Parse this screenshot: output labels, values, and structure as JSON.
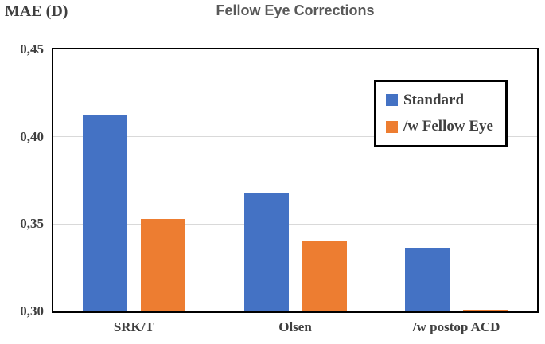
{
  "chart_data": {
    "type": "bar",
    "title": "Fellow Eye Corrections",
    "ylabel": "MAE (D)",
    "xlabel": "",
    "categories": [
      "SRK/T",
      "Olsen",
      "/w postop ACD"
    ],
    "series": [
      {
        "name": "Standard",
        "color": "#4472C4",
        "values": [
          0.412,
          0.368,
          0.336
        ]
      },
      {
        "name": "/w Fellow Eye",
        "color": "#ED7D31",
        "values": [
          0.353,
          0.34,
          0.301
        ]
      }
    ],
    "ylim": [
      0.3,
      0.45
    ],
    "yticks": [
      {
        "value": 0.45,
        "label": "0,45"
      },
      {
        "value": 0.4,
        "label": "0,40"
      },
      {
        "value": 0.35,
        "label": "0,35"
      },
      {
        "value": 0.3,
        "label": "0,30"
      }
    ],
    "grid": "horizontal",
    "legend_position": "top-right",
    "decimal_separator": ","
  },
  "colors": {
    "title_text": "#595959",
    "axis_text": "#3f3f3f",
    "gridline": "#d9d9d9",
    "plot_border": "#000000",
    "legend_border": "#000000",
    "background": "#ffffff"
  }
}
